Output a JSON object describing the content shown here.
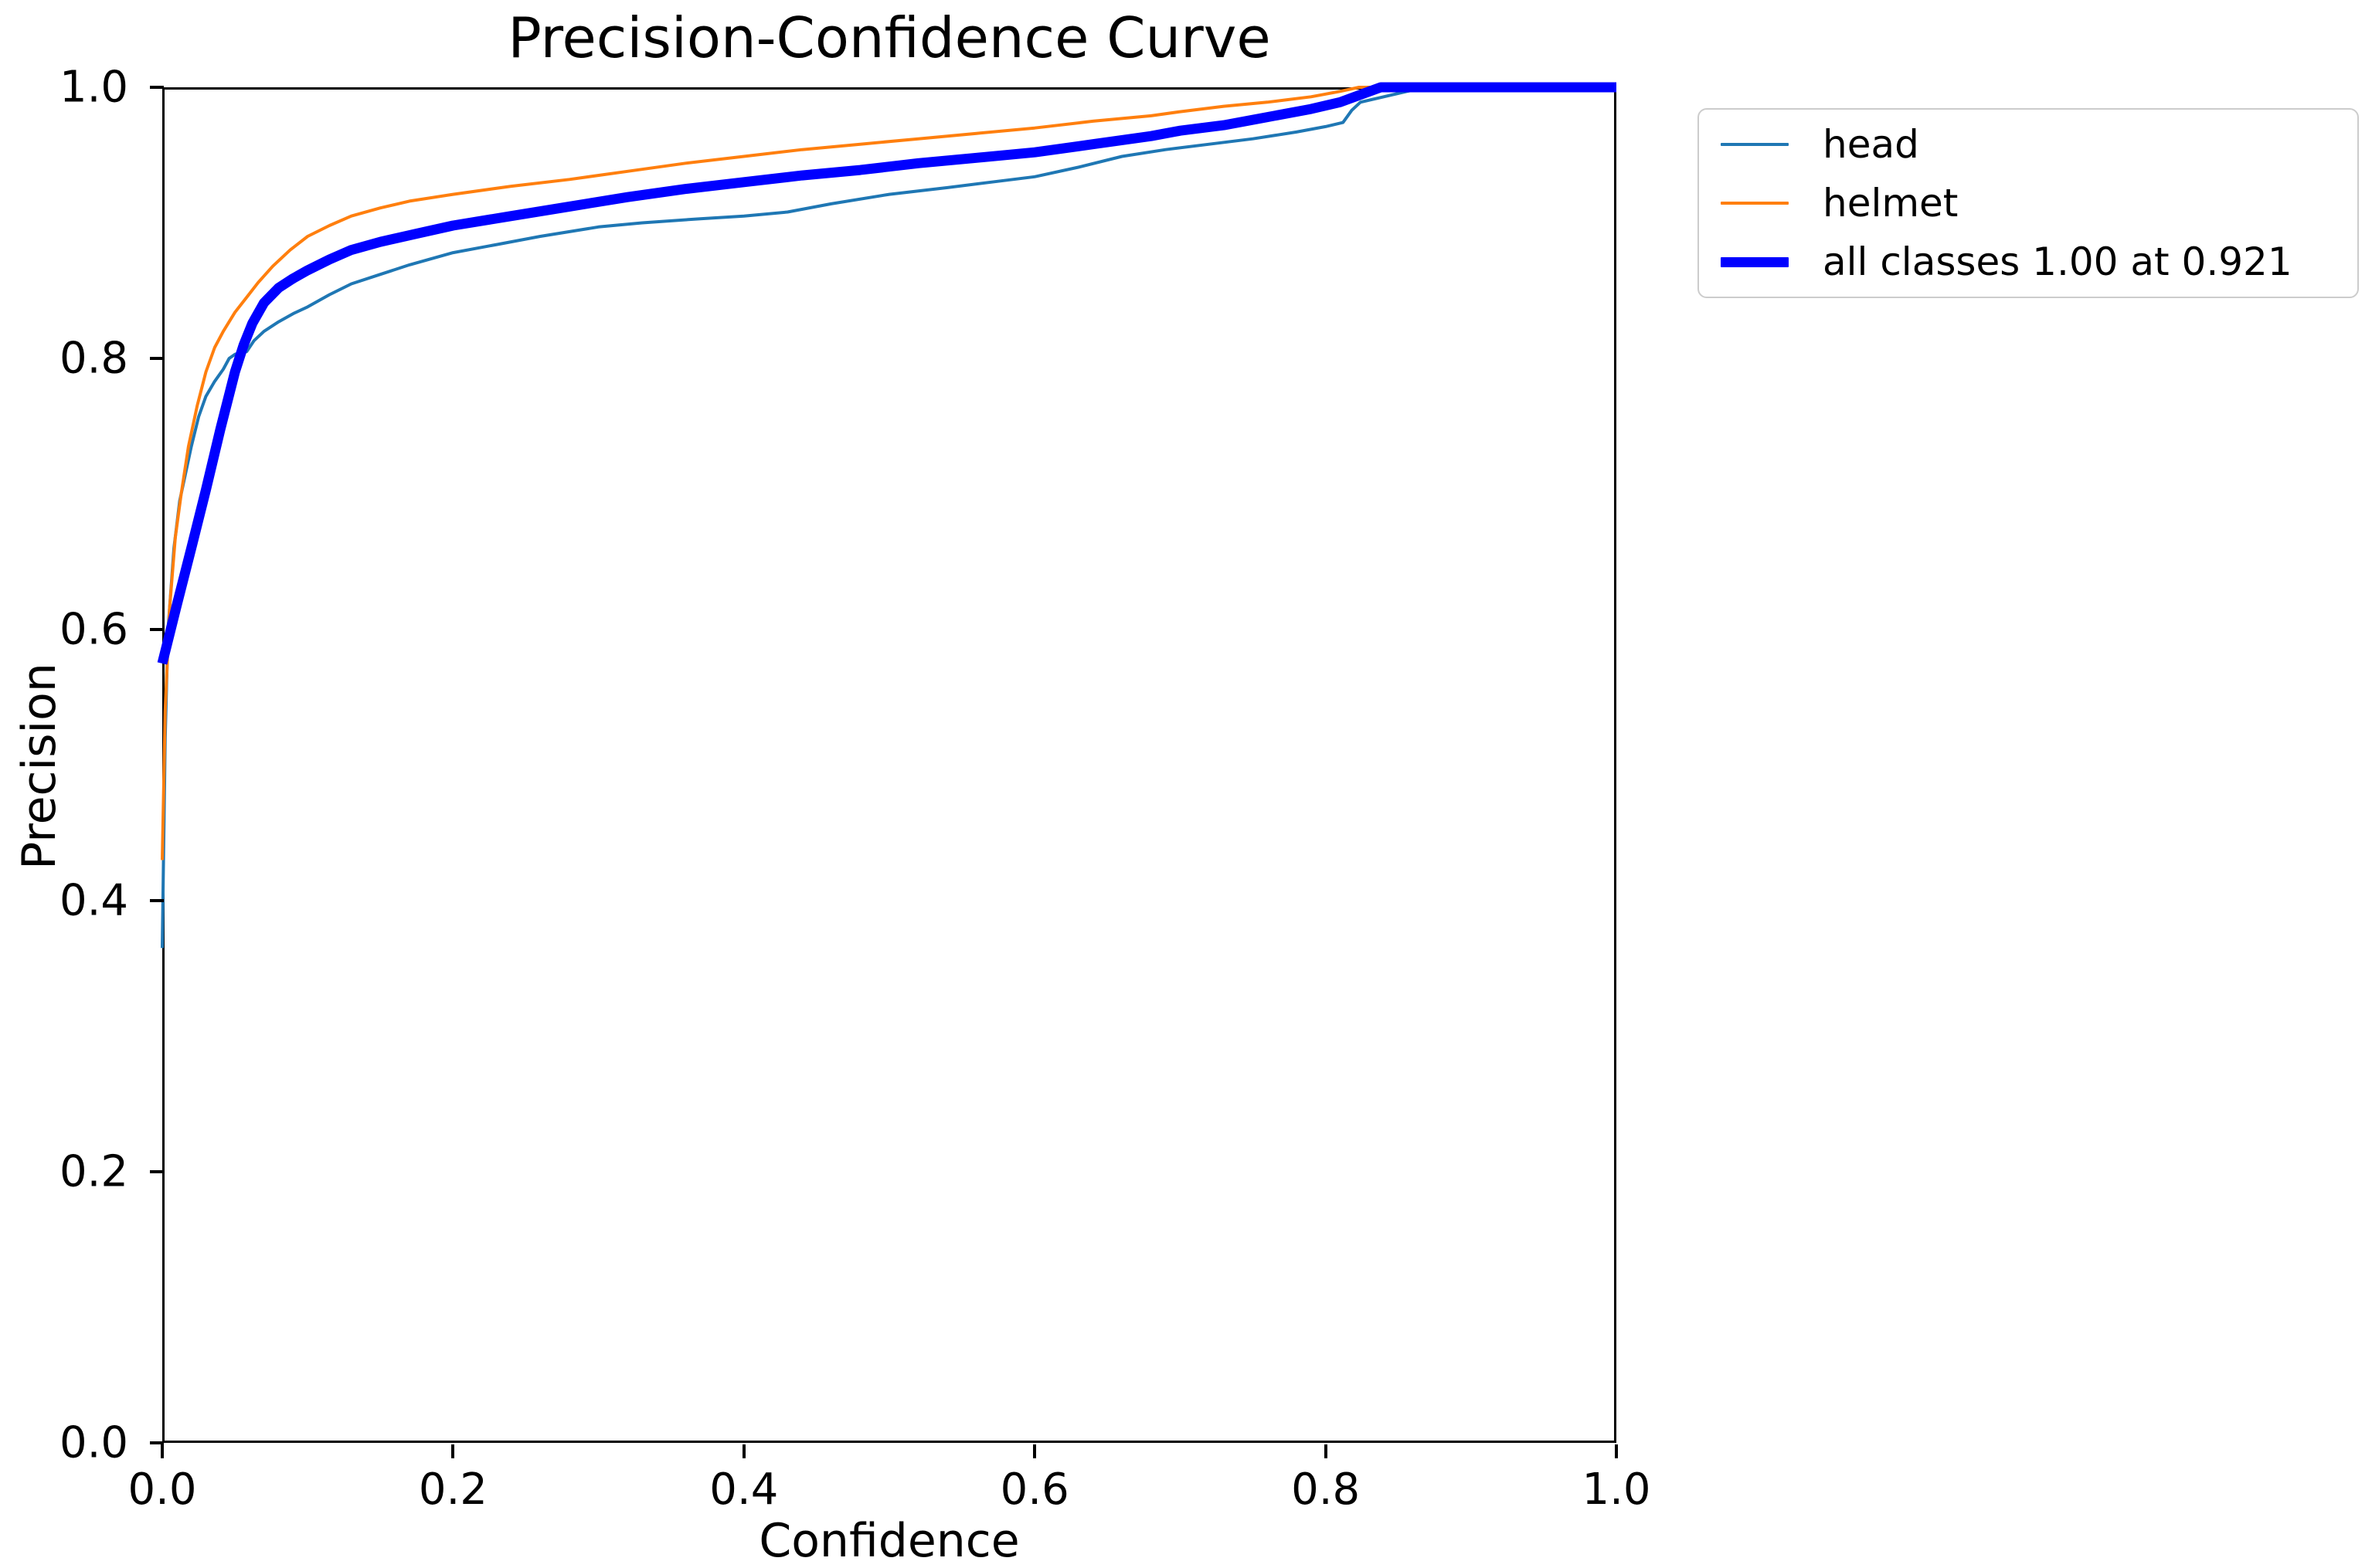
{
  "figure": {
    "title": "Precision-Confidence Curve",
    "x_axis_label": "Confidence",
    "y_axis_label": "Precision",
    "background_color": "#ffffff",
    "axis_color": "#000000",
    "legend_border_color": "#cccccc"
  },
  "chart_data": {
    "type": "line",
    "title": "Precision-Confidence Curve",
    "xlabel": "Confidence",
    "ylabel": "Precision",
    "xlim": [
      0.0,
      1.0
    ],
    "ylim": [
      0.0,
      1.0
    ],
    "x_ticks": [
      "0.0",
      "0.2",
      "0.4",
      "0.6",
      "0.8",
      "1.0"
    ],
    "y_ticks": [
      "0.0",
      "0.2",
      "0.4",
      "0.6",
      "0.8",
      "1.0"
    ],
    "grid": false,
    "legend_position": "outside upper right",
    "series": [
      {
        "name": "head",
        "color": "#1f77b4",
        "width": 4,
        "points": [
          [
            0.0,
            0.365
          ],
          [
            0.002,
            0.52
          ],
          [
            0.004,
            0.6
          ],
          [
            0.008,
            0.66
          ],
          [
            0.012,
            0.695
          ],
          [
            0.016,
            0.715
          ],
          [
            0.02,
            0.735
          ],
          [
            0.025,
            0.757
          ],
          [
            0.03,
            0.772
          ],
          [
            0.036,
            0.783
          ],
          [
            0.042,
            0.792
          ],
          [
            0.046,
            0.8
          ],
          [
            0.05,
            0.803
          ],
          [
            0.058,
            0.805
          ],
          [
            0.063,
            0.813
          ],
          [
            0.07,
            0.82
          ],
          [
            0.08,
            0.827
          ],
          [
            0.09,
            0.833
          ],
          [
            0.1,
            0.838
          ],
          [
            0.115,
            0.847
          ],
          [
            0.13,
            0.855
          ],
          [
            0.15,
            0.862
          ],
          [
            0.17,
            0.869
          ],
          [
            0.2,
            0.878
          ],
          [
            0.23,
            0.884
          ],
          [
            0.26,
            0.89
          ],
          [
            0.3,
            0.897
          ],
          [
            0.33,
            0.9
          ],
          [
            0.37,
            0.903
          ],
          [
            0.4,
            0.905
          ],
          [
            0.43,
            0.908
          ],
          [
            0.46,
            0.914
          ],
          [
            0.5,
            0.921
          ],
          [
            0.54,
            0.926
          ],
          [
            0.57,
            0.93
          ],
          [
            0.6,
            0.934
          ],
          [
            0.63,
            0.941
          ],
          [
            0.66,
            0.949
          ],
          [
            0.69,
            0.954
          ],
          [
            0.72,
            0.958
          ],
          [
            0.75,
            0.962
          ],
          [
            0.78,
            0.967
          ],
          [
            0.8,
            0.971
          ],
          [
            0.812,
            0.974
          ],
          [
            0.818,
            0.983
          ],
          [
            0.824,
            0.989
          ],
          [
            0.84,
            0.993
          ],
          [
            0.856,
            0.997
          ],
          [
            0.87,
            1.0
          ],
          [
            1.0,
            1.0
          ]
        ]
      },
      {
        "name": "helmet",
        "color": "#ff7f0e",
        "width": 4,
        "points": [
          [
            0.0,
            0.43
          ],
          [
            0.002,
            0.54
          ],
          [
            0.005,
            0.615
          ],
          [
            0.009,
            0.668
          ],
          [
            0.013,
            0.7
          ],
          [
            0.018,
            0.735
          ],
          [
            0.024,
            0.765
          ],
          [
            0.03,
            0.79
          ],
          [
            0.036,
            0.808
          ],
          [
            0.042,
            0.82
          ],
          [
            0.05,
            0.834
          ],
          [
            0.058,
            0.845
          ],
          [
            0.066,
            0.856
          ],
          [
            0.076,
            0.868
          ],
          [
            0.088,
            0.88
          ],
          [
            0.1,
            0.89
          ],
          [
            0.115,
            0.898
          ],
          [
            0.13,
            0.905
          ],
          [
            0.15,
            0.911
          ],
          [
            0.17,
            0.916
          ],
          [
            0.2,
            0.921
          ],
          [
            0.24,
            0.927
          ],
          [
            0.28,
            0.932
          ],
          [
            0.32,
            0.938
          ],
          [
            0.36,
            0.944
          ],
          [
            0.4,
            0.949
          ],
          [
            0.44,
            0.954
          ],
          [
            0.48,
            0.958
          ],
          [
            0.52,
            0.962
          ],
          [
            0.56,
            0.966
          ],
          [
            0.6,
            0.97
          ],
          [
            0.64,
            0.975
          ],
          [
            0.68,
            0.979
          ],
          [
            0.7,
            0.982
          ],
          [
            0.73,
            0.986
          ],
          [
            0.76,
            0.989
          ],
          [
            0.79,
            0.993
          ],
          [
            0.81,
            0.997
          ],
          [
            0.823,
            1.0
          ],
          [
            1.0,
            1.0
          ]
        ]
      },
      {
        "name": "all classes 1.00 at 0.921",
        "color": "#0000ff",
        "width": 13,
        "points": [
          [
            0.0,
            0.575
          ],
          [
            0.01,
            0.618
          ],
          [
            0.02,
            0.66
          ],
          [
            0.03,
            0.703
          ],
          [
            0.04,
            0.748
          ],
          [
            0.05,
            0.79
          ],
          [
            0.056,
            0.81
          ],
          [
            0.062,
            0.826
          ],
          [
            0.07,
            0.841
          ],
          [
            0.08,
            0.852
          ],
          [
            0.09,
            0.859
          ],
          [
            0.1,
            0.865
          ],
          [
            0.115,
            0.873
          ],
          [
            0.13,
            0.88
          ],
          [
            0.15,
            0.886
          ],
          [
            0.175,
            0.892
          ],
          [
            0.2,
            0.898
          ],
          [
            0.24,
            0.905
          ],
          [
            0.28,
            0.912
          ],
          [
            0.32,
            0.919
          ],
          [
            0.36,
            0.925
          ],
          [
            0.4,
            0.93
          ],
          [
            0.44,
            0.935
          ],
          [
            0.48,
            0.939
          ],
          [
            0.52,
            0.944
          ],
          [
            0.56,
            0.948
          ],
          [
            0.6,
            0.952
          ],
          [
            0.64,
            0.958
          ],
          [
            0.68,
            0.964
          ],
          [
            0.7,
            0.968
          ],
          [
            0.73,
            0.972
          ],
          [
            0.76,
            0.978
          ],
          [
            0.79,
            0.984
          ],
          [
            0.81,
            0.989
          ],
          [
            0.838,
            1.0
          ],
          [
            0.921,
            1.0
          ],
          [
            1.0,
            1.0
          ]
        ]
      }
    ]
  }
}
